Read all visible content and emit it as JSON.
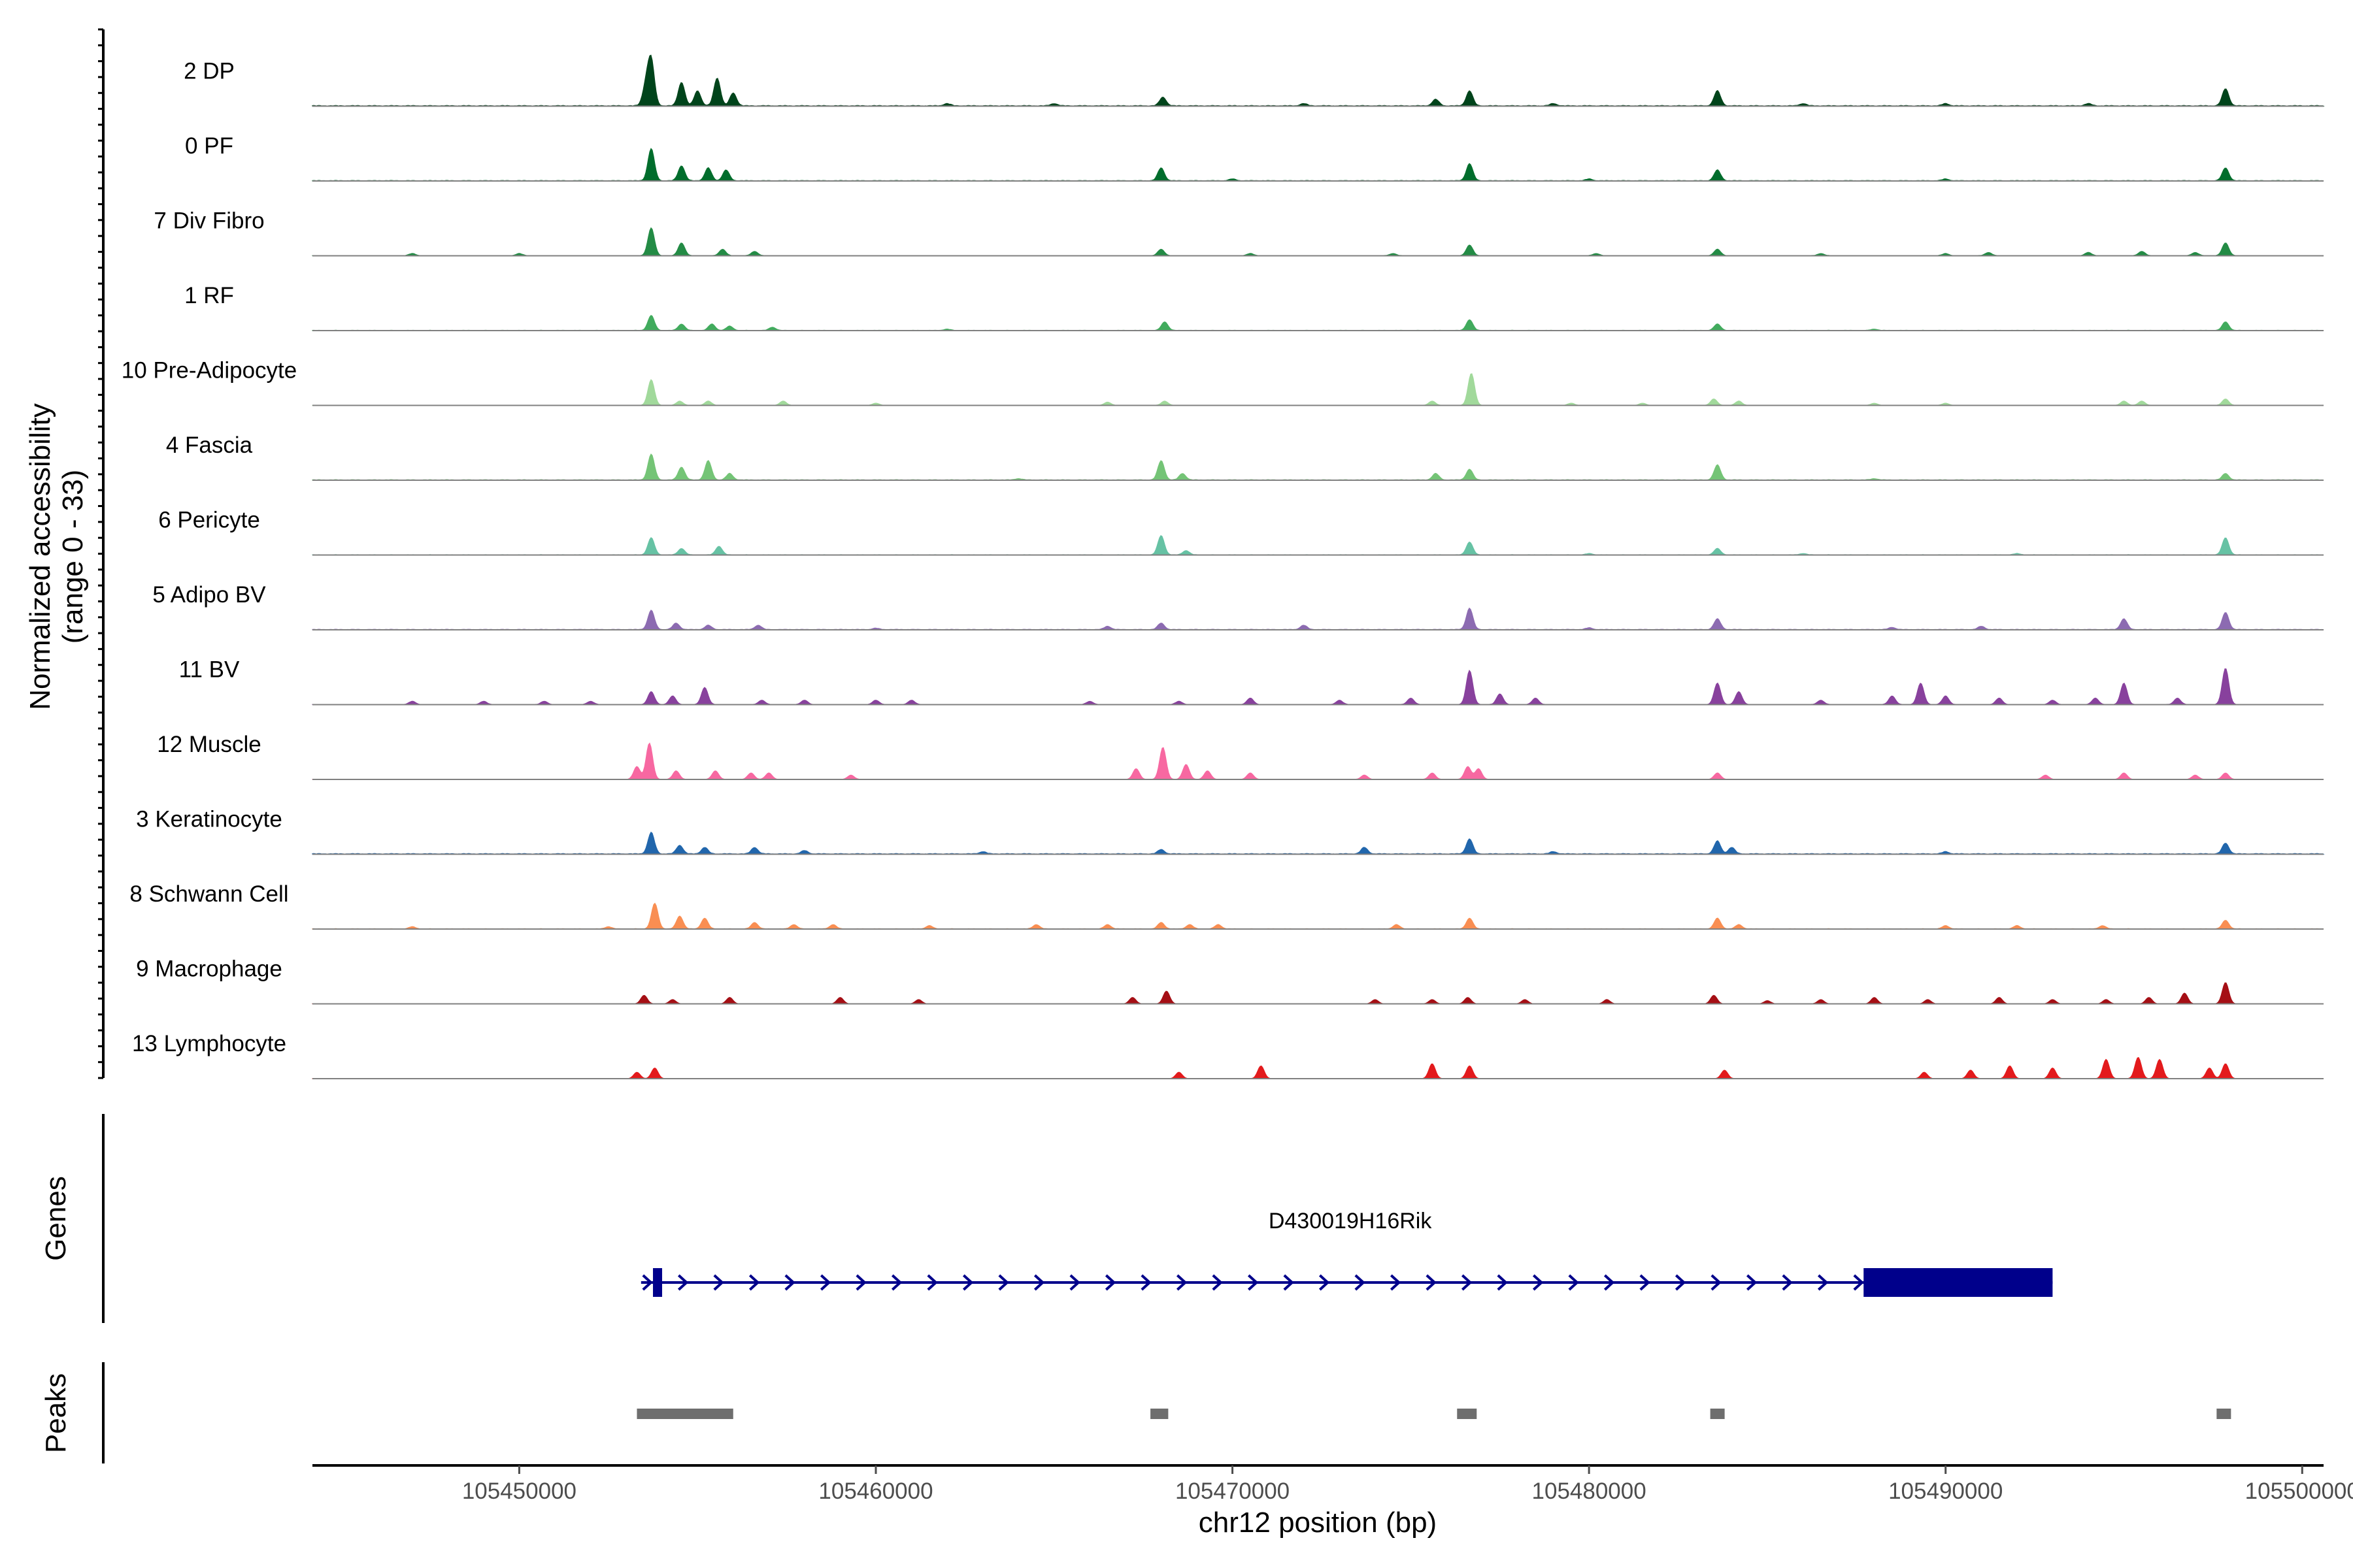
{
  "chart_data": {
    "type": "area",
    "title": "",
    "chromosome": "chr12",
    "xlim": [
      105444200,
      105500600
    ],
    "xlabel": "chr12 position (bp)",
    "x_ticks": [
      105450000,
      105460000,
      105470000,
      105480000,
      105490000,
      105500000
    ],
    "x_tick_labels": [
      "105450000",
      "105460000",
      "105470000",
      "105480000",
      "105490000",
      "105500000"
    ],
    "ylabel_line1": "Normalized accessibility",
    "ylabel_line2": "(range 0 - 33)",
    "ylim": [
      0,
      33
    ],
    "y_minor_ticks": 66,
    "tracks": [
      {
        "name": "2 DP",
        "color": "#00441b",
        "baseline": 0.4,
        "peaks": [
          [
            105453700,
            21
          ],
          [
            105453550,
            9
          ],
          [
            105454550,
            11
          ],
          [
            105455000,
            7
          ],
          [
            105455550,
            13
          ],
          [
            105456000,
            6
          ],
          [
            105468050,
            4
          ],
          [
            105475700,
            3
          ],
          [
            105476650,
            7
          ],
          [
            105483600,
            7
          ],
          [
            105497850,
            8
          ],
          [
            105462000,
            1
          ],
          [
            105465000,
            1
          ],
          [
            105472000,
            1
          ],
          [
            105479000,
            1
          ],
          [
            105486000,
            1
          ],
          [
            105490000,
            1
          ],
          [
            105494000,
            1
          ]
        ]
      },
      {
        "name": "0 PF",
        "color": "#006d2c",
        "baseline": 0.3,
        "peaks": [
          [
            105453700,
            15
          ],
          [
            105454550,
            7
          ],
          [
            105455300,
            6
          ],
          [
            105455800,
            5
          ],
          [
            105468000,
            6
          ],
          [
            105476650,
            8
          ],
          [
            105483600,
            5
          ],
          [
            105497850,
            6
          ],
          [
            105470000,
            0.8
          ],
          [
            105480000,
            0.8
          ],
          [
            105490000,
            0.8
          ]
        ]
      },
      {
        "name": "7 Div Fibro",
        "color": "#238b45",
        "baseline": 0.15,
        "peaks": [
          [
            105453700,
            13
          ],
          [
            105454550,
            6
          ],
          [
            105455700,
            3
          ],
          [
            105456600,
            2
          ],
          [
            105468000,
            3
          ],
          [
            105476650,
            5
          ],
          [
            105483600,
            3
          ],
          [
            105497850,
            6
          ],
          [
            105447000,
            1
          ],
          [
            105450000,
            1
          ],
          [
            105470500,
            1
          ],
          [
            105474500,
            1
          ],
          [
            105480200,
            1
          ],
          [
            105486500,
            1
          ],
          [
            105490000,
            1
          ],
          [
            105491200,
            1.5
          ],
          [
            105494000,
            1.5
          ],
          [
            105495500,
            2
          ],
          [
            105497000,
            1.5
          ]
        ]
      },
      {
        "name": "1 RF",
        "color": "#41ab5d",
        "baseline": 0.2,
        "peaks": [
          [
            105453700,
            7
          ],
          [
            105454550,
            3
          ],
          [
            105455400,
            3
          ],
          [
            105455900,
            2
          ],
          [
            105457100,
            1.5
          ],
          [
            105468100,
            4
          ],
          [
            105476650,
            5
          ],
          [
            105483600,
            3
          ],
          [
            105497850,
            4
          ],
          [
            105462000,
            0.6
          ],
          [
            105488000,
            0.6
          ]
        ]
      },
      {
        "name": "10 Pre-Adipocyte",
        "color": "#a1d99b",
        "baseline": 0.1,
        "peaks": [
          [
            105453700,
            12
          ],
          [
            105454500,
            2
          ],
          [
            105455300,
            2
          ],
          [
            105457400,
            2
          ],
          [
            105460000,
            1
          ],
          [
            105466500,
            1.5
          ],
          [
            105468100,
            2
          ],
          [
            105475600,
            2
          ],
          [
            105476700,
            15
          ],
          [
            105479500,
            1
          ],
          [
            105481500,
            1
          ],
          [
            105483500,
            3
          ],
          [
            105484200,
            2
          ],
          [
            105488000,
            1
          ],
          [
            105490000,
            1
          ],
          [
            105495000,
            2
          ],
          [
            105495500,
            2
          ],
          [
            105497850,
            3
          ]
        ]
      },
      {
        "name": "4 Fascia",
        "color": "#74c476",
        "baseline": 0.3,
        "peaks": [
          [
            105453700,
            12
          ],
          [
            105454550,
            6
          ],
          [
            105455300,
            9
          ],
          [
            105455900,
            3
          ],
          [
            105468000,
            9
          ],
          [
            105468600,
            3
          ],
          [
            105475700,
            3
          ],
          [
            105476650,
            5
          ],
          [
            105483600,
            7
          ],
          [
            105497850,
            3
          ],
          [
            105464000,
            0.6
          ],
          [
            105488000,
            0.6
          ]
        ]
      },
      {
        "name": "6 Pericyte",
        "color": "#66c2a4",
        "baseline": 0.2,
        "peaks": [
          [
            105453700,
            8
          ],
          [
            105454550,
            3
          ],
          [
            105455600,
            4
          ],
          [
            105468000,
            9
          ],
          [
            105468700,
            2
          ],
          [
            105476650,
            6
          ],
          [
            105483600,
            3
          ],
          [
            105497850,
            8
          ],
          [
            105480000,
            0.6
          ],
          [
            105486000,
            0.6
          ],
          [
            105492000,
            0.6
          ]
        ]
      },
      {
        "name": "5 Adipo BV",
        "color": "#8c6bb1",
        "baseline": 0.3,
        "peaks": [
          [
            105453700,
            9
          ],
          [
            105454400,
            3
          ],
          [
            105455300,
            2
          ],
          [
            105456700,
            2
          ],
          [
            105466500,
            1.5
          ],
          [
            105468000,
            3
          ],
          [
            105472000,
            2
          ],
          [
            105476650,
            10
          ],
          [
            105483600,
            5
          ],
          [
            105488500,
            1
          ],
          [
            105495000,
            5
          ],
          [
            105497850,
            8
          ],
          [
            105460000,
            0.6
          ],
          [
            105480000,
            0.8
          ],
          [
            105491000,
            1.5
          ]
        ]
      },
      {
        "name": "11 BV",
        "color": "#88419d",
        "baseline": 0.15,
        "peaks": [
          [
            105453700,
            6
          ],
          [
            105454300,
            4
          ],
          [
            105455200,
            8
          ],
          [
            105456800,
            2
          ],
          [
            105458000,
            2
          ],
          [
            105460000,
            2
          ],
          [
            105461000,
            2
          ],
          [
            105466000,
            1.5
          ],
          [
            105468500,
            1.5
          ],
          [
            105470500,
            3
          ],
          [
            105473000,
            2
          ],
          [
            105475000,
            3
          ],
          [
            105476650,
            16
          ],
          [
            105477500,
            5
          ],
          [
            105478500,
            3
          ],
          [
            105483600,
            10
          ],
          [
            105484200,
            6
          ],
          [
            105486500,
            2
          ],
          [
            105488500,
            4
          ],
          [
            105489300,
            10
          ],
          [
            105490000,
            4
          ],
          [
            105491500,
            3
          ],
          [
            105493000,
            2
          ],
          [
            105494200,
            3
          ],
          [
            105495000,
            10
          ],
          [
            105496500,
            3
          ],
          [
            105497850,
            17
          ],
          [
            105447000,
            1.5
          ],
          [
            105449000,
            1.5
          ],
          [
            105450700,
            1.5
          ],
          [
            105452000,
            1.5
          ]
        ]
      },
      {
        "name": "12 Muscle",
        "color": "#f768a1",
        "baseline": 0.1,
        "peaks": [
          [
            105453650,
            17
          ],
          [
            105453300,
            6
          ],
          [
            105454400,
            4
          ],
          [
            105455500,
            4
          ],
          [
            105456500,
            3
          ],
          [
            105457000,
            3
          ],
          [
            105459300,
            2
          ],
          [
            105467300,
            5
          ],
          [
            105468050,
            15
          ],
          [
            105468700,
            7
          ],
          [
            105469300,
            4
          ],
          [
            105470500,
            3
          ],
          [
            105473700,
            2
          ],
          [
            105475600,
            3
          ],
          [
            105476600,
            6
          ],
          [
            105476900,
            5
          ],
          [
            105483600,
            3
          ],
          [
            105492800,
            2
          ],
          [
            105495000,
            3
          ],
          [
            105497000,
            2
          ],
          [
            105497850,
            3
          ]
        ]
      },
      {
        "name": "3 Keratinocyte",
        "color": "#2166ac",
        "baseline": 0.4,
        "peaks": [
          [
            105453700,
            10
          ],
          [
            105454500,
            4
          ],
          [
            105455200,
            3
          ],
          [
            105456600,
            3
          ],
          [
            105458000,
            1.5
          ],
          [
            105468000,
            2
          ],
          [
            105473700,
            3
          ],
          [
            105476650,
            7
          ],
          [
            105483600,
            6
          ],
          [
            105484000,
            3
          ],
          [
            105497850,
            5
          ],
          [
            105463000,
            1
          ],
          [
            105479000,
            1
          ],
          [
            105490000,
            1
          ]
        ]
      },
      {
        "name": "8 Schwann Cell",
        "color": "#f98e52",
        "baseline": 0.2,
        "peaks": [
          [
            105453800,
            12
          ],
          [
            105454500,
            6
          ],
          [
            105455200,
            5
          ],
          [
            105456600,
            3
          ],
          [
            105457700,
            2
          ],
          [
            105458800,
            2
          ],
          [
            105461500,
            1.5
          ],
          [
            105464500,
            2
          ],
          [
            105466500,
            2
          ],
          [
            105468000,
            3
          ],
          [
            105468800,
            2
          ],
          [
            105469600,
            2
          ],
          [
            105474600,
            2
          ],
          [
            105476650,
            5
          ],
          [
            105483600,
            5
          ],
          [
            105484200,
            2
          ],
          [
            105490000,
            1.5
          ],
          [
            105492000,
            1.5
          ],
          [
            105494400,
            1.5
          ],
          [
            105497850,
            4
          ],
          [
            105447000,
            1
          ],
          [
            105452500,
            1
          ]
        ]
      },
      {
        "name": "9 Macrophage",
        "color": "#a50f15",
        "baseline": 0.05,
        "peaks": [
          [
            105453500,
            4
          ],
          [
            105454300,
            2
          ],
          [
            105455900,
            3
          ],
          [
            105459000,
            3
          ],
          [
            105461200,
            2
          ],
          [
            105467200,
            3
          ],
          [
            105468150,
            6
          ],
          [
            105474000,
            2
          ],
          [
            105475600,
            2
          ],
          [
            105476600,
            3
          ],
          [
            105478200,
            2
          ],
          [
            105480500,
            2
          ],
          [
            105483500,
            4
          ],
          [
            105485000,
            1.5
          ],
          [
            105486500,
            2
          ],
          [
            105488000,
            3
          ],
          [
            105489500,
            2
          ],
          [
            105491500,
            3
          ],
          [
            105493000,
            2
          ],
          [
            105494500,
            2
          ],
          [
            105495700,
            3
          ],
          [
            105496700,
            5
          ],
          [
            105497850,
            10
          ]
        ]
      },
      {
        "name": "13 Lymphocyte",
        "color": "#e31a1c",
        "baseline": 0.05,
        "peaks": [
          [
            105453300,
            3
          ],
          [
            105453800,
            5
          ],
          [
            105468500,
            3
          ],
          [
            105470800,
            6
          ],
          [
            105475600,
            7
          ],
          [
            105476650,
            6
          ],
          [
            105483800,
            4
          ],
          [
            105489400,
            3
          ],
          [
            105490700,
            4
          ],
          [
            105491800,
            6
          ],
          [
            105493000,
            5
          ],
          [
            105494500,
            9
          ],
          [
            105495400,
            10
          ],
          [
            105496000,
            9
          ],
          [
            105497400,
            5
          ],
          [
            105497850,
            7
          ]
        ]
      }
    ],
    "genes": {
      "label": "Genes",
      "name": "D430019H16Rik",
      "strand": "+",
      "start": 105453600,
      "end": 105493000,
      "thick_blocks": [
        [
          105453750,
          105454000
        ],
        [
          105487700,
          105493000
        ]
      ],
      "color": "#00008b"
    },
    "peaks_track": {
      "label": "Peaks",
      "color": "#6e6e6e",
      "regions": [
        [
          105453300,
          105456000
        ],
        [
          105467700,
          105468200
        ],
        [
          105476300,
          105476850
        ],
        [
          105483400,
          105483800
        ],
        [
          105497600,
          105498000
        ]
      ]
    }
  }
}
